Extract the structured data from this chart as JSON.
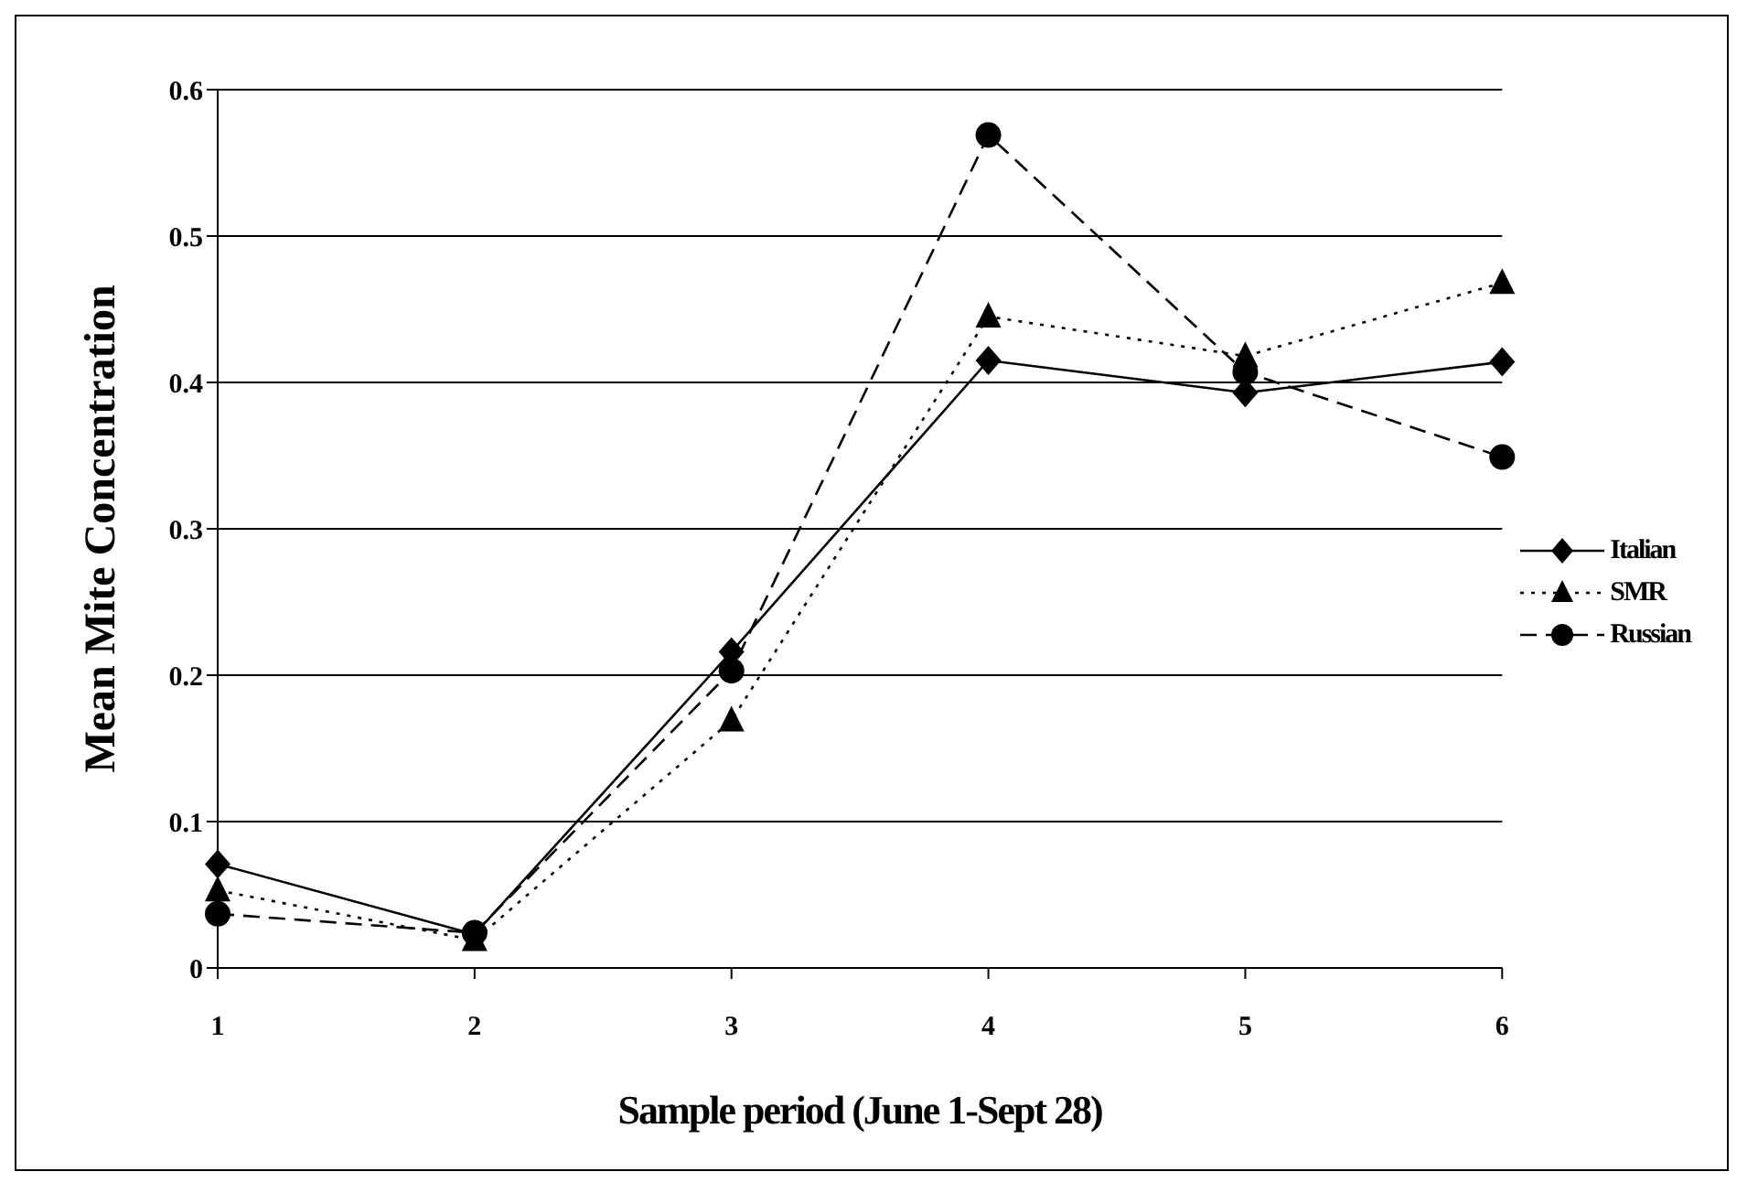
{
  "chart_data": {
    "type": "line",
    "xlabel": "Sample period (June 1-Sept 28)",
    "ylabel": "Mean Mite Concentration",
    "categories": [
      "1",
      "2",
      "3",
      "4",
      "5",
      "6"
    ],
    "series": [
      {
        "name": "Italian",
        "color": "#000000",
        "marker": "diamond",
        "line_style": "solid",
        "values": [
          0.071,
          0.023,
          0.216,
          0.415,
          0.393,
          0.414
        ]
      },
      {
        "name": "SMR",
        "color": "#000000",
        "marker": "triangle",
        "line_style": "dotted",
        "values": [
          0.053,
          0.019,
          0.169,
          0.445,
          0.418,
          0.468
        ]
      },
      {
        "name": "Russian",
        "color": "#000000",
        "marker": "circle",
        "line_style": "dashed",
        "values": [
          0.037,
          0.024,
          0.203,
          0.569,
          0.407,
          0.349
        ]
      }
    ],
    "ylim": [
      0,
      0.6
    ],
    "yticks": [
      0,
      0.1,
      0.2,
      0.3,
      0.4,
      0.5,
      0.6
    ],
    "grid": "y",
    "legend": "right"
  }
}
